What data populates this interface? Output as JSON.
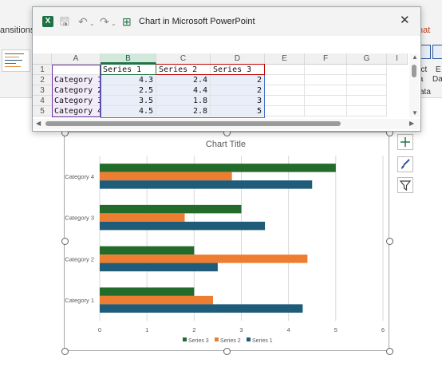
{
  "ribbon": {
    "tab_transitions": "ansitions",
    "tab_format": "nat",
    "btn1_lines": [
      "ect",
      "ta"
    ],
    "btn2_lines": [
      "E",
      "Da"
    ],
    "group_label": "ata"
  },
  "spreadsheet": {
    "title": "Chart in Microsoft PowerPoint",
    "columns": [
      "A",
      "B",
      "C",
      "D",
      "E",
      "F",
      "G",
      "I"
    ],
    "rows": [
      {
        "num": "1",
        "a": "",
        "b": "Series 1",
        "c": "Series 2",
        "d": "Series 3"
      },
      {
        "num": "2",
        "a": "Category 1",
        "b": "4.3",
        "c": "2.4",
        "d": "2"
      },
      {
        "num": "3",
        "a": "Category 2",
        "b": "2.5",
        "c": "4.4",
        "d": "2"
      },
      {
        "num": "4",
        "a": "Category 3",
        "b": "3.5",
        "c": "1.8",
        "d": "3"
      },
      {
        "num": "5",
        "a": "Category 4",
        "b": "4.5",
        "c": "2.8",
        "d": "5"
      }
    ]
  },
  "chart_data": {
    "type": "bar",
    "orientation": "horizontal",
    "title": "Chart Title",
    "categories": [
      "Category 1",
      "Category 2",
      "Category 3",
      "Category 4"
    ],
    "series": [
      {
        "name": "Series 1",
        "values": [
          4.3,
          2.5,
          3.5,
          4.5
        ],
        "color": "#1f5c7a"
      },
      {
        "name": "Series 2",
        "values": [
          2.4,
          4.4,
          1.8,
          2.8
        ],
        "color": "#ed7d31"
      },
      {
        "name": "Series 3",
        "values": [
          2,
          2,
          3,
          5
        ],
        "color": "#236b2a"
      }
    ],
    "xlim": [
      0,
      6
    ],
    "xticks": [
      0,
      1,
      2,
      3,
      4,
      5,
      6
    ],
    "grid": true,
    "legend": "bottom",
    "legend_order": [
      "Series 3",
      "Series 2",
      "Series 1"
    ]
  },
  "colors": {
    "excel_green": "#217346",
    "format_tab": "#c43e1c"
  }
}
